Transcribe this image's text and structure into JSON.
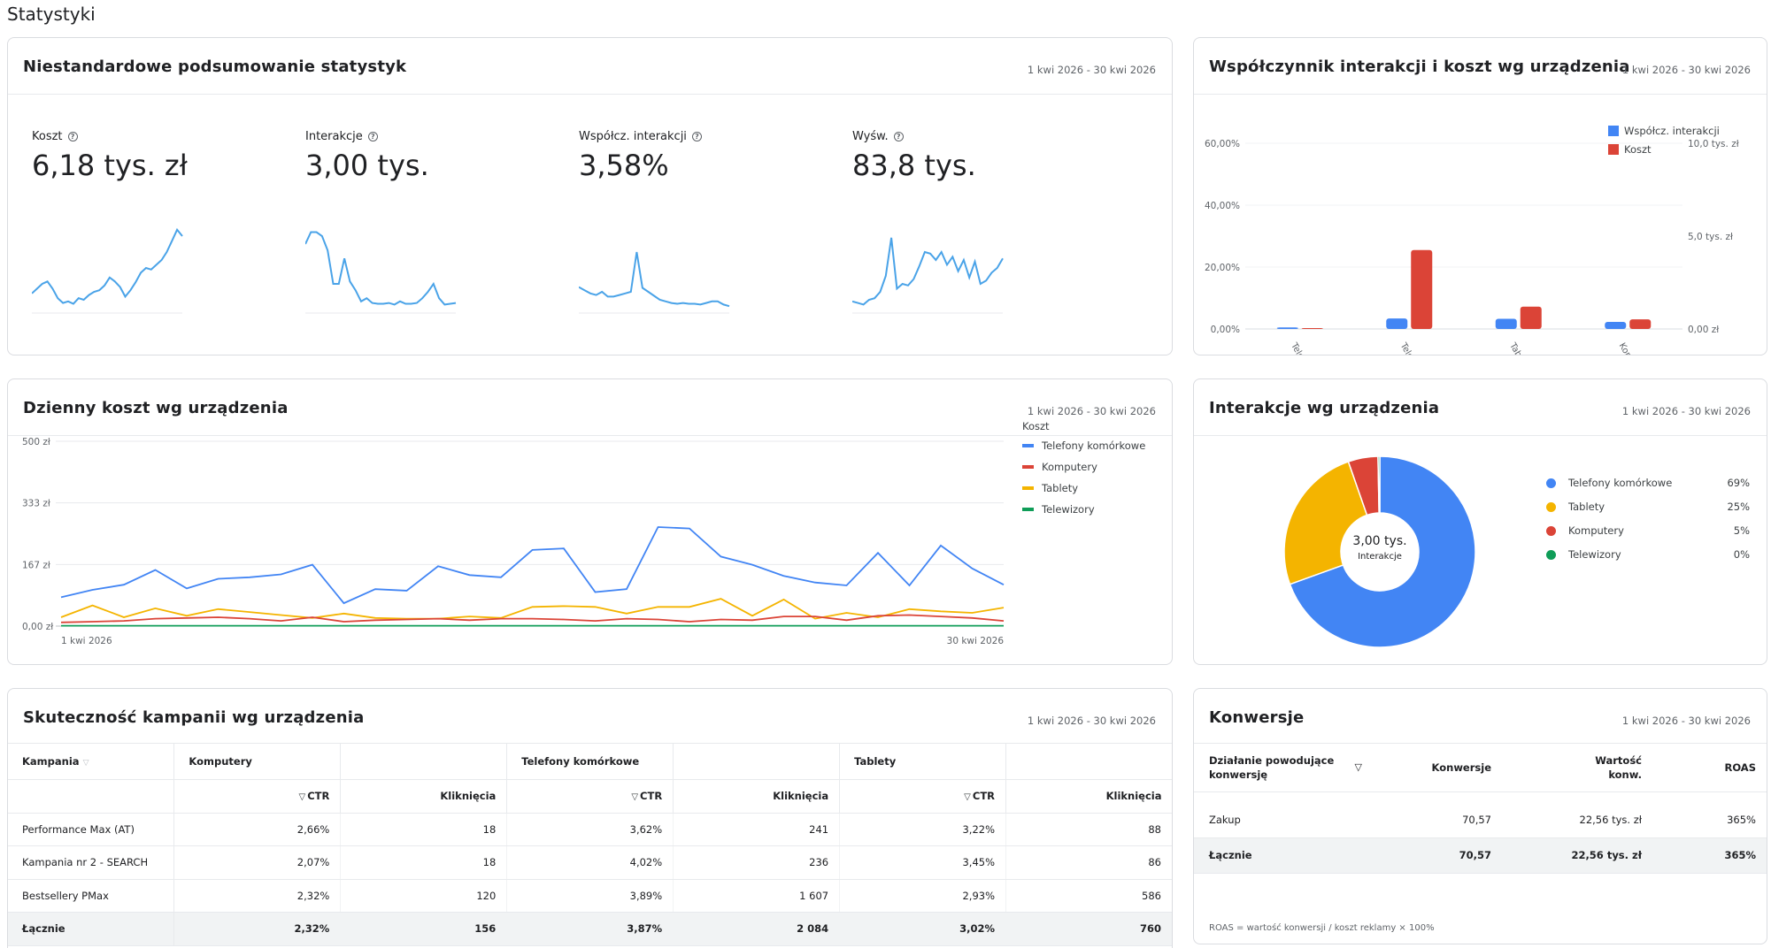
{
  "page_title": "Statystyki",
  "summary": {
    "title": "Niestandardowe podsumowanie statystyk",
    "date": "1 kwi 2026 - 30 kwi 2026",
    "metrics": [
      {
        "label": "Koszt",
        "value": "6,18 tys. zł",
        "spark": [
          18,
          24,
          30,
          33,
          24,
          12,
          6,
          8,
          5,
          12,
          10,
          16,
          20,
          22,
          28,
          38,
          33,
          26,
          14,
          22,
          32,
          44,
          50,
          48,
          54,
          60,
          70,
          84,
          98,
          90
        ]
      },
      {
        "label": "Interakcje",
        "value": "3,00 tys.",
        "spark": [
          80,
          95,
          95,
          90,
          72,
          30,
          30,
          62,
          33,
          22,
          8,
          12,
          6,
          5,
          5,
          6,
          4,
          8,
          5,
          5,
          6,
          12,
          20,
          30,
          12,
          4,
          5,
          6
        ]
      },
      {
        "label": "Współcz. interakcji",
        "value": "3,58%",
        "spark": [
          26,
          22,
          18,
          16,
          20,
          14,
          14,
          16,
          18,
          20,
          70,
          25,
          20,
          15,
          10,
          8,
          6,
          5,
          6,
          5,
          5,
          4,
          6,
          8,
          8,
          4,
          2
        ]
      },
      {
        "label": "Wyśw.",
        "value": "83,8 tys.",
        "spark": [
          8,
          6,
          4,
          10,
          12,
          20,
          40,
          88,
          24,
          30,
          28,
          36,
          52,
          70,
          68,
          60,
          70,
          54,
          64,
          46,
          60,
          38,
          58,
          30,
          34,
          44,
          50,
          62
        ]
      }
    ]
  },
  "device_ratio": {
    "title": "Współczynnik interakcji i koszt wg urządzenia",
    "date": "1 kwi 2026 - 30 kwi 2026",
    "chart_data": {
      "type": "bar",
      "categories": [
        "Telewizory",
        "Telefony k.",
        "Tablety",
        "Komputery"
      ],
      "series": [
        {
          "name": "Współcz. interakcji",
          "axis": "left",
          "values": [
            0.5,
            3.4,
            3.3,
            2.3
          ]
        },
        {
          "name": "Koszt",
          "axis": "right",
          "values": [
            0.05,
            4.25,
            1.2,
            0.52
          ]
        }
      ],
      "left_ylim": [
        0,
        60
      ],
      "right_ylim": [
        0,
        10
      ],
      "left_ticks": [
        "60,00%",
        "40,00%",
        "20,00%",
        "0,00%"
      ],
      "right_ticks": [
        "10,0 tys. zł",
        "5,0 tys. zł",
        "0,00 zł"
      ],
      "legend_position": "top-right",
      "colors": [
        "#4285f4",
        "#db4437"
      ]
    }
  },
  "daily_cost": {
    "title": "Dzienny koszt wg urządzenia",
    "date": "1 kwi 2026 - 30 kwi 2026",
    "legend_title": "Koszt",
    "chart_data": {
      "type": "line",
      "x_start": "1 kwi 2026",
      "x_end": "30 kwi 2026",
      "ylim": [
        0,
        500
      ],
      "y_ticks": [
        "500 zł",
        "333 zł",
        "167 zł",
        "0,00 zł"
      ],
      "legend_position": "right",
      "series": [
        {
          "name": "Telefony komórkowe",
          "color": "#4285f4",
          "values": [
            78,
            98,
            112,
            152,
            102,
            128,
            132,
            140,
            166,
            62,
            100,
            96,
            162,
            138,
            132,
            206,
            210,
            92,
            100,
            268,
            264,
            188,
            166,
            136,
            118,
            110,
            198,
            110,
            218,
            156,
            112
          ]
        },
        {
          "name": "Komputery",
          "color": "#db4437",
          "values": [
            10,
            12,
            14,
            20,
            22,
            24,
            20,
            14,
            24,
            12,
            16,
            18,
            20,
            16,
            20,
            20,
            18,
            14,
            20,
            18,
            12,
            18,
            16,
            26,
            26,
            16,
            28,
            30,
            26,
            22,
            14
          ]
        },
        {
          "name": "Tablety",
          "color": "#f4b400",
          "values": [
            24,
            56,
            24,
            48,
            28,
            46,
            38,
            30,
            22,
            34,
            22,
            20,
            20,
            26,
            22,
            52,
            54,
            52,
            34,
            52,
            52,
            74,
            28,
            72,
            20,
            36,
            24,
            46,
            40,
            36,
            50
          ]
        },
        {
          "name": "Telewizory",
          "color": "#0f9d58",
          "values": [
            1,
            1,
            1,
            1,
            1,
            1,
            1,
            1,
            1,
            1,
            1,
            1,
            1,
            1,
            1,
            1,
            1,
            1,
            1,
            1,
            1,
            1,
            1,
            1,
            1,
            1,
            1,
            1,
            1,
            1,
            1
          ]
        }
      ]
    }
  },
  "interactions": {
    "title": "Interakcje wg urządzenia",
    "date": "1 kwi 2026 - 30 kwi 2026",
    "center_value": "3,00 tys.",
    "center_label": "Interakcje",
    "chart_data": {
      "type": "pie",
      "slices": [
        {
          "name": "Telefony komórkowe",
          "pct_label": "69%",
          "value": 69,
          "color": "#4285f4"
        },
        {
          "name": "Tablety",
          "pct_label": "25%",
          "value": 25,
          "color": "#f4b400"
        },
        {
          "name": "Komputery",
          "pct_label": "5%",
          "value": 5,
          "color": "#db4437"
        },
        {
          "name": "Telewizory",
          "pct_label": "0%",
          "value": 0.3,
          "color": "#0f9d58"
        }
      ]
    }
  },
  "campaigns": {
    "title": "Skuteczność kampanii wg urządzenia",
    "date": "1 kwi 2026 - 30 kwi 2026",
    "header": {
      "campaign": "Kampania",
      "comp": "Komputery",
      "phones": "Telefony komórkowe",
      "tablets": "Tablety",
      "ctr": "CTR",
      "clicks": "Kliknięcia"
    },
    "rows": [
      {
        "name": "Performance Max (AT)",
        "c1": "2,66%",
        "k1": "18",
        "c2": "3,62%",
        "k2": "241",
        "c3": "3,22%",
        "k3": "88"
      },
      {
        "name": "Kampania nr 2 - SEARCH",
        "c1": "2,07%",
        "k1": "18",
        "c2": "4,02%",
        "k2": "236",
        "c3": "3,45%",
        "k3": "86"
      },
      {
        "name": "Bestsellery PMax",
        "c1": "2,32%",
        "k1": "120",
        "c2": "3,89%",
        "k2": "1 607",
        "c3": "2,93%",
        "k3": "586"
      }
    ],
    "total": {
      "name": "Łącznie",
      "c1": "2,32%",
      "k1": "156",
      "c2": "3,87%",
      "k2": "2 084",
      "c3": "3,02%",
      "k3": "760"
    }
  },
  "conversions": {
    "title": "Konwersje",
    "date": "1 kwi 2026 - 30 kwi 2026",
    "header": {
      "action": "Działanie powodujące konwersję",
      "conv": "Konwersje",
      "value": "Wartość konw.",
      "roas": "ROAS"
    },
    "row": {
      "action": "Zakup",
      "conv": "70,57",
      "value": "22,56 tys. zł",
      "roas": "365%"
    },
    "total": {
      "action": "Łącznie",
      "conv": "70,57",
      "value": "22,56 tys. zł",
      "roas": "365%"
    },
    "footnote": "ROAS = wartość konwersji / koszt reklamy × 100%"
  }
}
